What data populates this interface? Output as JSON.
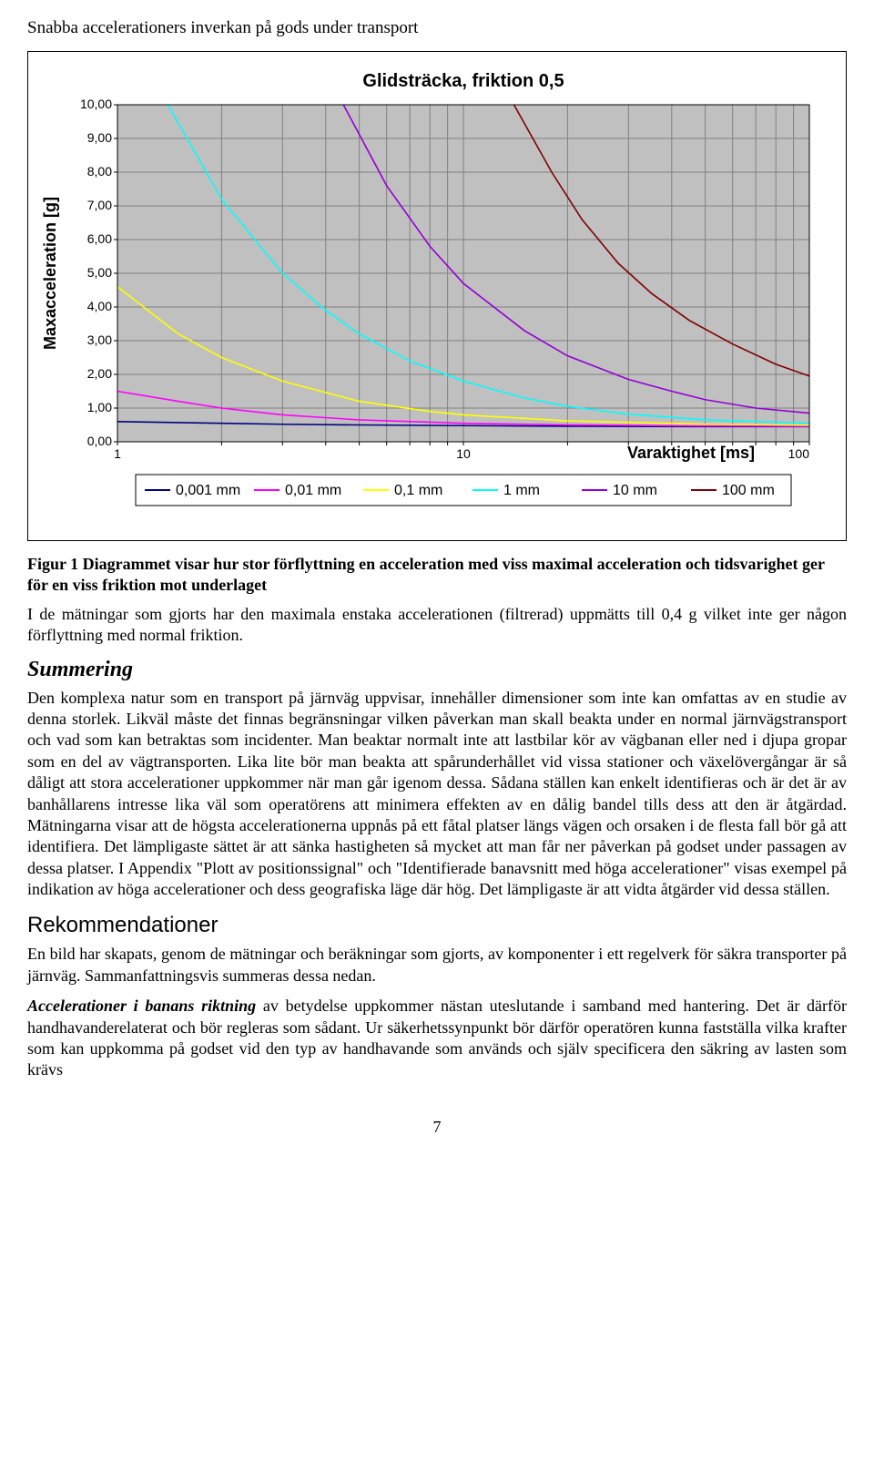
{
  "header_title": "Snabba accelerationers inverkan på gods under transport",
  "chart": {
    "type": "line",
    "title": "Glidsträcka, friktion 0,5",
    "title_fontsize": 20,
    "title_weight": "bold",
    "ylabel": "Maxacceleration [g]",
    "xlabel": "Varaktighet [ms]",
    "xscale": "log",
    "xlim": [
      1,
      100
    ],
    "ylim": [
      0,
      10
    ],
    "ytick_step": 1,
    "yticks": [
      "0,00",
      "1,00",
      "2,00",
      "3,00",
      "4,00",
      "5,00",
      "6,00",
      "7,00",
      "8,00",
      "9,00",
      "10,00"
    ],
    "xticks": [
      "1",
      "10",
      "100"
    ],
    "plot_background": "#c0c0c0",
    "grid_color": "#808080",
    "axis_color": "#000000",
    "label_fontsize": 16,
    "tick_fontsize": 14,
    "line_width": 1.6,
    "series": [
      {
        "name": "0,001 mm",
        "label": "0,001 mm",
        "color": "#000080",
        "points": [
          [
            1,
            0.6
          ],
          [
            2,
            0.55
          ],
          [
            3,
            0.52
          ],
          [
            5,
            0.5
          ],
          [
            10,
            0.48
          ],
          [
            20,
            0.46
          ],
          [
            50,
            0.45
          ],
          [
            100,
            0.45
          ]
        ]
      },
      {
        "name": "0,01 mm",
        "label": "0,01 mm",
        "color": "#ff00ff",
        "points": [
          [
            1,
            1.5
          ],
          [
            1.5,
            1.2
          ],
          [
            2,
            1.0
          ],
          [
            3,
            0.8
          ],
          [
            5,
            0.65
          ],
          [
            10,
            0.55
          ],
          [
            20,
            0.5
          ],
          [
            50,
            0.47
          ],
          [
            100,
            0.46
          ]
        ]
      },
      {
        "name": "0,1 mm",
        "label": "0,1 mm",
        "color": "#ffff00",
        "points": [
          [
            1,
            4.6
          ],
          [
            1.5,
            3.2
          ],
          [
            2,
            2.5
          ],
          [
            3,
            1.8
          ],
          [
            5,
            1.2
          ],
          [
            8,
            0.9
          ],
          [
            10,
            0.8
          ],
          [
            20,
            0.62
          ],
          [
            50,
            0.52
          ],
          [
            100,
            0.49
          ]
        ]
      },
      {
        "name": "1 mm",
        "label": "1 mm",
        "color": "#00ffff",
        "points": [
          [
            1.4,
            10
          ],
          [
            2,
            7.2
          ],
          [
            3,
            5.0
          ],
          [
            4,
            3.9
          ],
          [
            5,
            3.2
          ],
          [
            7,
            2.4
          ],
          [
            10,
            1.8
          ],
          [
            15,
            1.3
          ],
          [
            20,
            1.05
          ],
          [
            30,
            0.82
          ],
          [
            50,
            0.65
          ],
          [
            100,
            0.55
          ]
        ]
      },
      {
        "name": "10 mm",
        "label": "10 mm",
        "color": "#9400d3",
        "points": [
          [
            4.5,
            10
          ],
          [
            6,
            7.6
          ],
          [
            8,
            5.8
          ],
          [
            10,
            4.7
          ],
          [
            15,
            3.3
          ],
          [
            20,
            2.55
          ],
          [
            30,
            1.85
          ],
          [
            40,
            1.5
          ],
          [
            50,
            1.25
          ],
          [
            70,
            1.0
          ],
          [
            100,
            0.85
          ]
        ]
      },
      {
        "name": "100 mm",
        "label": "100 mm",
        "color": "#800000",
        "points": [
          [
            14,
            10
          ],
          [
            18,
            8.0
          ],
          [
            22,
            6.6
          ],
          [
            28,
            5.3
          ],
          [
            35,
            4.4
          ],
          [
            45,
            3.6
          ],
          [
            60,
            2.9
          ],
          [
            80,
            2.3
          ],
          [
            100,
            1.95
          ]
        ]
      }
    ],
    "legend": {
      "items": [
        "0,001 mm",
        "0,01 mm",
        "0,1 mm",
        "1 mm",
        "10 mm",
        "100 mm"
      ],
      "position": "bottom",
      "border_color": "#000000",
      "background": "#ffffff",
      "fontsize": 16
    }
  },
  "caption": "Figur 1 Diagrammet visar hur stor förflyttning en acceleration med viss maximal acceleration och tidsvarighet ger för en viss friktion mot underlaget",
  "para_measurements": "I de mätningar som gjorts har den maximala enstaka accelerationen (filtrerad) uppmätts till 0,4 g vilket inte ger någon förflyttning med normal friktion.",
  "summering_heading": "Summering",
  "summering_body": "Den komplexa natur som en transport på järnväg uppvisar, innehåller dimensioner som inte kan omfattas av en studie av denna storlek. Likväl måste det finnas begränsningar vilken påverkan man skall beakta under en normal järnvägstransport och vad som kan betraktas som incidenter. Man beaktar normalt inte att lastbilar kör av vägbanan eller ned i djupa gropar som en del av vägtransporten. Lika lite bör man beakta att spårunderhållet vid vissa stationer och växelövergångar är så dåligt att stora accelerationer uppkommer när man går igenom dessa. Sådana ställen kan enkelt identifieras och är det är av banhållarens intresse lika väl som operatörens att minimera effekten av en dålig bandel tills dess att den är åtgärdad. Mätningarna visar att de högsta accelerationerna uppnås på ett fåtal platser längs vägen och orsaken i de flesta fall bör gå att identifiera. Det lämpligaste sättet är att sänka hastigheten så mycket att man får ner påverkan på godset under passagen av dessa platser. I Appendix \"Plott av positionssignal\" och \"Identifierade banavsnitt med höga accelerationer\" visas exempel på indikation av höga accelerationer och dess geografiska läge där hög. Det lämpligaste är att vidta åtgärder vid dessa ställen.",
  "rekommend_heading": "Rekommendationer",
  "rekommend_p1": "En bild har skapats, genom de mätningar och beräkningar som gjorts, av komponenter i ett regelverk för säkra transporter på järnväg. Sammanfattningsvis summeras dessa nedan.",
  "rekommend_runin": "Accelerationer i banans riktning",
  "rekommend_p2_rest": " av betydelse uppkommer nästan uteslutande i samband med hantering. Det är därför handhavanderelaterat och bör regleras som sådant. Ur säkerhetssynpunkt bör därför operatören kunna fastställa vilka krafter som kan uppkomma på godset vid den typ av handhavande som används och själv specificera den säkring av lasten som krävs",
  "page_number": "7"
}
